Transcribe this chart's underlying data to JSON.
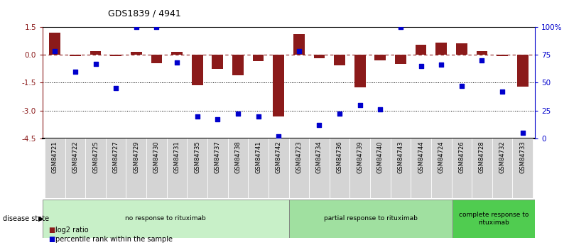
{
  "title": "GDS1839 / 4941",
  "samples": [
    "GSM84721",
    "GSM84722",
    "GSM84725",
    "GSM84727",
    "GSM84729",
    "GSM84730",
    "GSM84731",
    "GSM84735",
    "GSM84737",
    "GSM84738",
    "GSM84741",
    "GSM84742",
    "GSM84723",
    "GSM84734",
    "GSM84736",
    "GSM84739",
    "GSM84740",
    "GSM84743",
    "GSM84744",
    "GSM84724",
    "GSM84726",
    "GSM84728",
    "GSM84732",
    "GSM84733"
  ],
  "log2_ratio": [
    1.2,
    -0.08,
    0.18,
    -0.05,
    0.15,
    -0.45,
    0.15,
    -1.65,
    -0.75,
    -1.1,
    -0.35,
    -3.3,
    1.1,
    -0.2,
    -0.55,
    -1.75,
    -0.28,
    -0.5,
    0.55,
    0.65,
    0.6,
    0.2,
    -0.08,
    -1.7
  ],
  "percentile_rank": [
    78,
    60,
    67,
    45,
    100,
    100,
    68,
    20,
    17,
    22,
    20,
    2,
    78,
    12,
    22,
    30,
    26,
    100,
    65,
    66,
    47,
    70,
    42,
    5
  ],
  "group_labels": [
    "no response to rituximab",
    "partial response to rituximab",
    "complete response to\nrituximab"
  ],
  "group_counts": [
    12,
    8,
    4
  ],
  "group_colors": [
    "#c8f0c8",
    "#a0e0a0",
    "#50cc50"
  ],
  "bar_color": "#8B1A1A",
  "dot_color": "#0000CC",
  "bg_color": "#ffffff",
  "label_bg": "#d4d4d4",
  "ylim_left": [
    -4.5,
    1.5
  ],
  "ylim_right": [
    0,
    100
  ],
  "yticks_left": [
    1.5,
    0.0,
    -1.5,
    -3.0,
    -4.5
  ],
  "yticks_right": [
    0,
    25,
    50,
    75,
    100
  ],
  "ytick_labels_right": [
    "0",
    "25",
    "50",
    "75",
    "100%"
  ]
}
